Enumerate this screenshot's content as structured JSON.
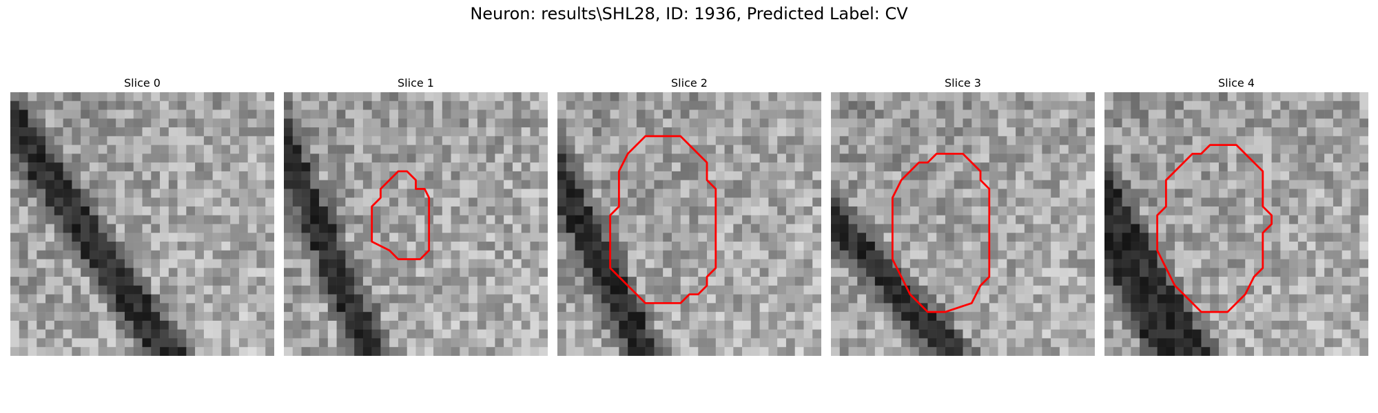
{
  "figure": {
    "title": "Neuron: results\\SHL28, ID: 1936, Predicted Label: CV"
  },
  "panels": [
    {
      "title": "Slice 0",
      "has_contour": false
    },
    {
      "title": "Slice 1",
      "has_contour": true
    },
    {
      "title": "Slice 2",
      "has_contour": true
    },
    {
      "title": "Slice 3",
      "has_contour": true
    },
    {
      "title": "Slice 4",
      "has_contour": true
    }
  ],
  "colors": {
    "contour": "#ff0000",
    "background": "#ffffff"
  }
}
